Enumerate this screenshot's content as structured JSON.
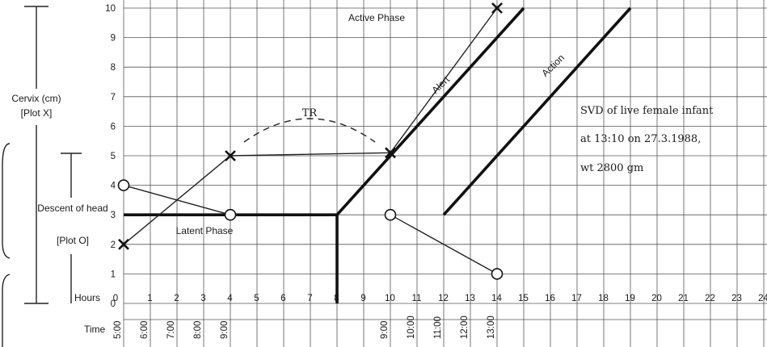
{
  "chart_data": {
    "type": "line",
    "title": "",
    "axes": {
      "y_label": "Cervix (cm)",
      "y_label_sub": "[Plot X]",
      "y_label_2": "Descent of head",
      "y_label_2_sub": "[Plot O]",
      "x_label": "Hours",
      "time_label": "Time",
      "y_ticks": [
        "10",
        "9",
        "8",
        "7",
        "6",
        "5",
        "4",
        "3",
        "2",
        "1",
        "0"
      ],
      "x_ticks": [
        "0",
        "1",
        "2",
        "3",
        "4",
        "5",
        "6",
        "7",
        "8",
        "9",
        "10",
        "11",
        "12",
        "13",
        "14",
        "15",
        "16",
        "17",
        "18",
        "19",
        "20",
        "21",
        "22",
        "23",
        "24"
      ],
      "time_ticks": [
        {
          "hour": 0,
          "label": "5:00"
        },
        {
          "hour": 1,
          "label": "6:00"
        },
        {
          "hour": 2,
          "label": "7:00"
        },
        {
          "hour": 3,
          "label": "8:00"
        },
        {
          "hour": 4,
          "label": "9:00"
        },
        {
          "hour": 10,
          "label": "9:00"
        },
        {
          "hour": 11,
          "label": "10:00"
        },
        {
          "hour": 12,
          "label": "11:00"
        },
        {
          "hour": 13,
          "label": "12:00"
        },
        {
          "hour": 14,
          "label": "13:00"
        }
      ],
      "xlim": [
        0,
        24
      ],
      "ylim": [
        0,
        10
      ],
      "grid": true
    },
    "series": [
      {
        "marker": "x",
        "points": [
          [
            0,
            2
          ],
          [
            4,
            5
          ],
          [
            10,
            5.1
          ],
          [
            14,
            10
          ]
        ]
      },
      {
        "marker": "o",
        "points": [
          [
            0,
            4
          ],
          [
            4,
            3
          ]
        ]
      },
      {
        "marker": "o",
        "points": [
          [
            10,
            3
          ],
          [
            14,
            1
          ]
        ]
      }
    ],
    "reference_lines": [
      {
        "name": "Alert",
        "points": [
          [
            8,
            3
          ],
          [
            15,
            10
          ]
        ]
      },
      {
        "name": "Action",
        "points": [
          [
            12,
            3
          ],
          [
            19,
            10
          ]
        ]
      },
      {
        "name": "Latent Phase",
        "points": [
          [
            0,
            3
          ],
          [
            8,
            3
          ]
        ]
      },
      {
        "name": "",
        "points": [
          [
            8,
            3
          ],
          [
            8,
            0
          ]
        ]
      }
    ],
    "annotations": {
      "active_phase": "Active Phase",
      "latent_phase": "Latent Phase",
      "alert": "Alert",
      "action": "Action",
      "tr": "TR",
      "note_lines": [
        "SVD of live female infant",
        "at 13:10 on 27.3.1988,",
        "wt 2800 gm"
      ]
    }
  }
}
